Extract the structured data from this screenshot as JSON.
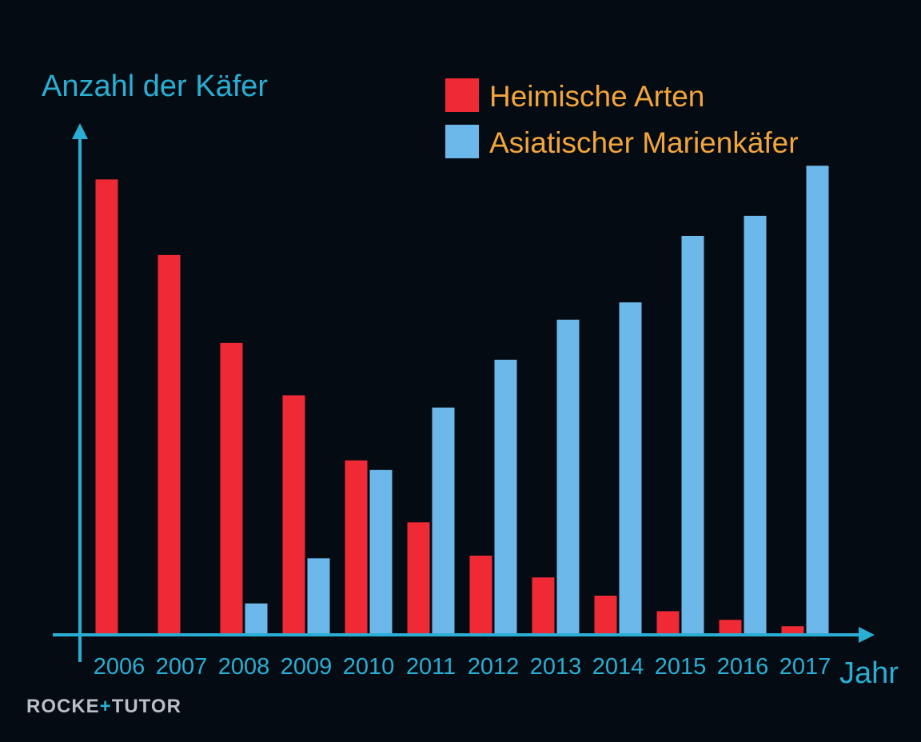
{
  "colors": {
    "background": "#050b12",
    "axis": "#2aaed3",
    "axis_text": "#2aaed3",
    "legend_text": "#f2a53c",
    "series_1": "#ef2a35",
    "series_2": "#6db8ea",
    "watermark": "#b9bfc5"
  },
  "chart_data": {
    "type": "bar",
    "ylabel": "Anzahl der Käfer",
    "xlabel": "Jahr",
    "categories": [
      "2006",
      "2007",
      "2008",
      "2009",
      "2010",
      "2011",
      "2012",
      "2013",
      "2014",
      "2015",
      "2016",
      "2017"
    ],
    "series": [
      {
        "name": "Heimische Arten",
        "color": "#ef2a35",
        "values": [
          100,
          83.4,
          64.1,
          52.6,
          38.3,
          24.7,
          17.4,
          12.6,
          8.6,
          5.2,
          3.3,
          1.9
        ]
      },
      {
        "name": "Asiatischer Marienkäfer",
        "color": "#6db8ea",
        "values": [
          0,
          0,
          6.9,
          16.8,
          36.2,
          49.9,
          60.4,
          69.2,
          73.0,
          87.6,
          92.0,
          103.0
        ]
      }
    ],
    "ylim": [
      0,
      112
    ],
    "y_axis_ticks": false,
    "grid": false,
    "legend": "top-right"
  },
  "watermark": {
    "text_left": "ROCKE",
    "text_plus": "+",
    "text_right": "TUTOR"
  }
}
